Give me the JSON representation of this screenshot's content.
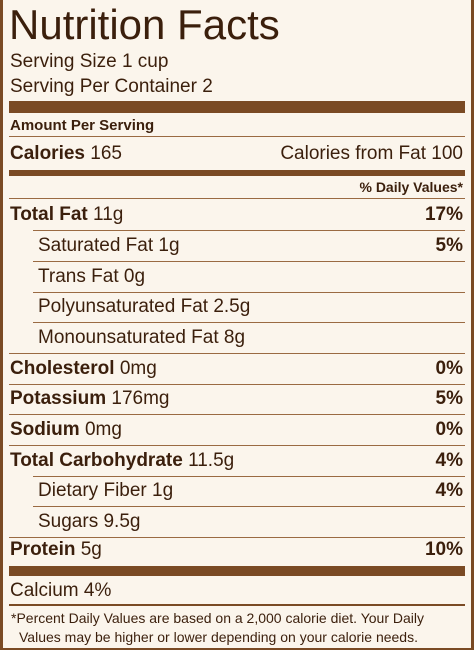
{
  "title": "Nutrition Facts",
  "serving_size": "Serving Size 1 cup",
  "servings_per_container_label": "Serving Per Container",
  "servings_per_container_value": "2",
  "amount_per_serving": "Amount Per Serving",
  "calories_label": "Calories",
  "calories_value": "165",
  "calories_from_fat": "Calories from Fat 100",
  "daily_values_header": "% Daily Values*",
  "nutrients": [
    {
      "name": "Total Fat",
      "amount": "11g",
      "dv": "17%"
    },
    {
      "name": "Saturated Fat",
      "amount": "1g",
      "dv": "5%"
    },
    {
      "name": "Trans Fat",
      "amount": "0g",
      "dv": ""
    },
    {
      "name": "Polyunsaturated Fat",
      "amount": "2.5g",
      "dv": ""
    },
    {
      "name": "Monounsaturated Fat",
      "amount": "8g",
      "dv": ""
    },
    {
      "name": "Cholesterol",
      "amount": "0mg",
      "dv": "0%"
    },
    {
      "name": "Potassium",
      "amount": "176mg",
      "dv": "5%"
    },
    {
      "name": "Sodium",
      "amount": "0mg",
      "dv": "0%"
    },
    {
      "name": "Total Carbohydrate",
      "amount": "11.5g",
      "dv": "4%"
    },
    {
      "name": "Dietary Fiber",
      "amount": "1g",
      "dv": "4%"
    },
    {
      "name": "Sugars",
      "amount": "9.5g",
      "dv": ""
    },
    {
      "name": "Protein",
      "amount": "5g",
      "dv": "10%"
    }
  ],
  "calcium": "Calcium 4%",
  "footnote_line1": "*Percent Daily Values are based on a 2,000 calorie diet. Your Daily",
  "footnote_line2": "Values may be higher or lower depending on your calorie needs.",
  "colors": {
    "text": "#3b1f0c",
    "bars": "#7a4a24",
    "background": "#fbf5ec"
  }
}
